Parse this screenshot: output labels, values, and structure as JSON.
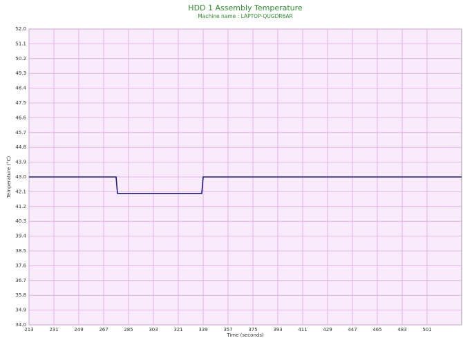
{
  "chart_data": {
    "type": "line",
    "title": "HDD 1 Assembly Temperature",
    "subtitle": "Machine name : LAPTOP-QUGDR6AR",
    "x_label": "Time (seconds)",
    "y_label": "Temperature (°C)",
    "x": [
      213,
      276,
      277,
      338,
      339,
      526
    ],
    "series": [
      {
        "color": "#1c1c7a",
        "values": [
          43,
          43,
          42,
          42,
          43,
          43
        ]
      }
    ],
    "xlim": [
      213,
      526
    ],
    "ylim": [
      34,
      52
    ],
    "xticks": [
      213,
      231,
      249,
      267,
      285,
      303,
      321,
      339,
      357,
      375,
      393,
      411,
      429,
      447,
      465,
      483,
      501
    ],
    "yticks": [
      {
        "value": 34,
        "label": "34.0"
      },
      34.9,
      35.8,
      36.7,
      37.6,
      38.5,
      39.4,
      40.3,
      41.2,
      42.1,
      {
        "value": 43,
        "label": "43.0"
      },
      43.9,
      44.8,
      45.7,
      46.6,
      47.5,
      48.4,
      49.3,
      50.2,
      51.1,
      {
        "value": 52,
        "label": "52.0"
      }
    ],
    "grid": true
  }
}
